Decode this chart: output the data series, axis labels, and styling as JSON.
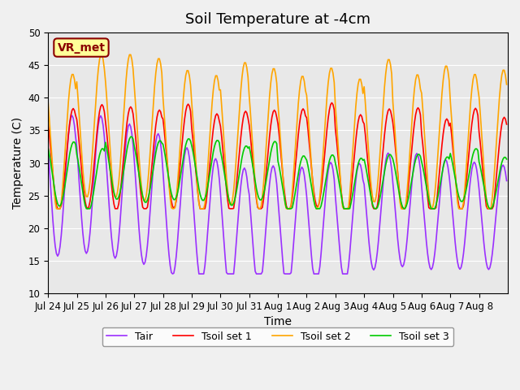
{
  "title": "Soil Temperature at -4cm",
  "xlabel": "Time",
  "ylabel": "Temperature (C)",
  "ylim": [
    10,
    50
  ],
  "plot_bg_color": "#e8e8e8",
  "fig_bg_color": "#f0f0f0",
  "annotation_text": "VR_met",
  "annotation_color": "#8B0000",
  "annotation_bg": "#ffff99",
  "annotation_edge": "#8B0000",
  "legend_labels": [
    "Tair",
    "Tsoil set 1",
    "Tsoil set 2",
    "Tsoil set 3"
  ],
  "line_colors": [
    "#9B30FF",
    "#FF0000",
    "#FFA500",
    "#00CC00"
  ],
  "xtick_labels": [
    "Jul 24",
    "Jul 25",
    "Jul 26",
    "Jul 27",
    "Jul 28",
    "Jul 29",
    "Jul 30",
    "Jul 31",
    "Aug 1",
    "Aug 2",
    "Aug 3",
    "Aug 4",
    "Aug 5",
    "Aug 6",
    "Aug 7",
    "Aug 8"
  ],
  "ytick_values": [
    10,
    15,
    20,
    25,
    30,
    35,
    40,
    45,
    50
  ],
  "title_fontsize": 13,
  "axis_fontsize": 10,
  "tick_fontsize": 8.5,
  "line_width": 1.2
}
